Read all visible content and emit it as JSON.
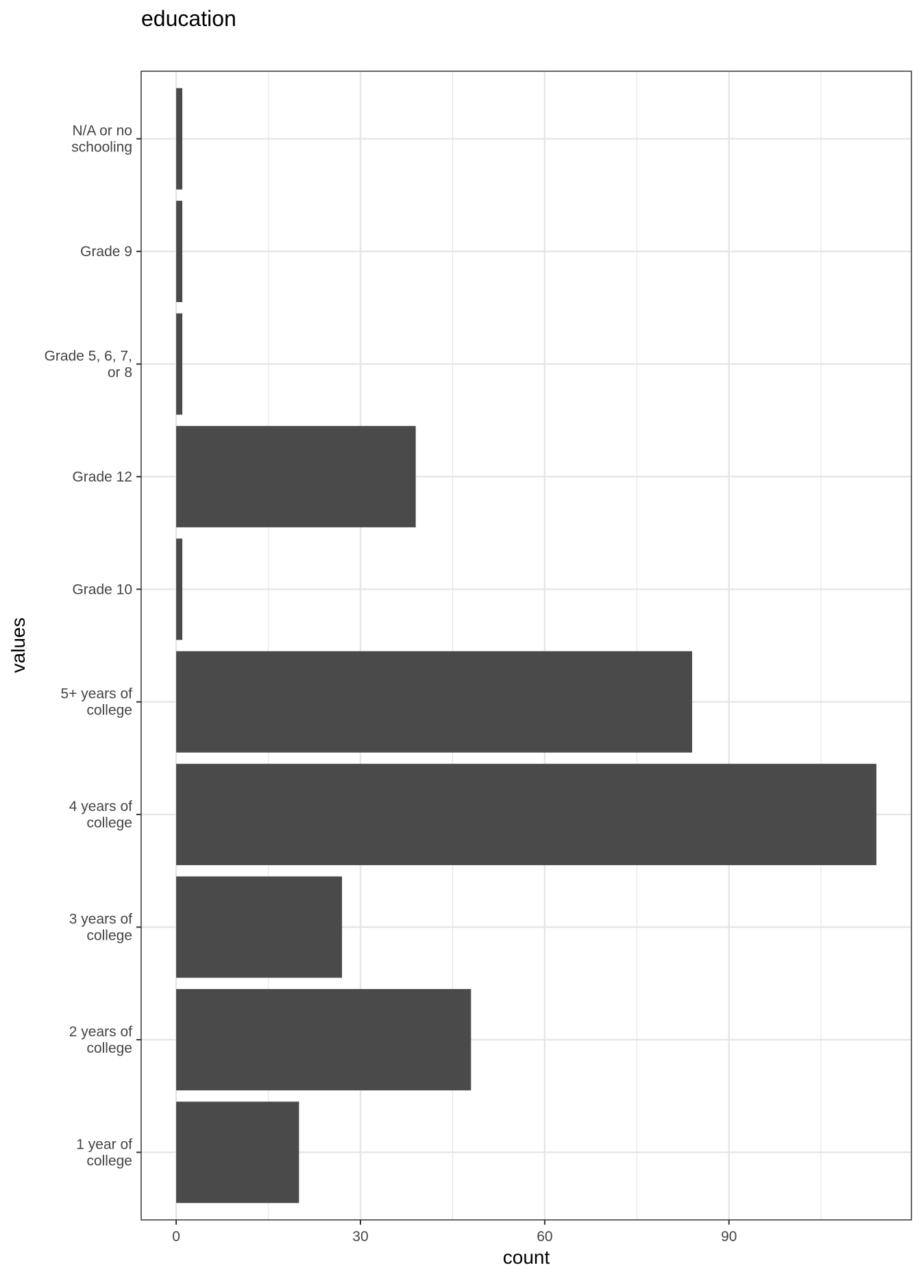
{
  "chart_data": {
    "type": "bar",
    "orientation": "horizontal",
    "title": "education",
    "xlabel": "count",
    "ylabel": "values",
    "categories": [
      "1 year of college",
      "2 years of college",
      "3 years of college",
      "4 years of college",
      "5+ years of college",
      "Grade 10",
      "Grade 12",
      "Grade 5, 6, 7, or 8",
      "Grade 9",
      "N/A or no schooling"
    ],
    "category_label_lines": [
      [
        "1 year of",
        "college"
      ],
      [
        "2 years of",
        "college"
      ],
      [
        "3 years of",
        "college"
      ],
      [
        "4 years of",
        "college"
      ],
      [
        "5+ years of",
        "college"
      ],
      [
        "Grade 10"
      ],
      [
        "Grade 12"
      ],
      [
        "Grade 5, 6, 7,",
        "or 8"
      ],
      [
        "Grade 9"
      ],
      [
        "N/A or no",
        "schooling"
      ]
    ],
    "values": [
      20,
      48,
      27,
      114,
      84,
      1,
      39,
      1,
      1,
      1
    ],
    "xlim": [
      -5.7,
      119.7
    ],
    "xticks": [
      0,
      30,
      60,
      90
    ],
    "xtick_labels": [
      "0",
      "30",
      "60",
      "90"
    ],
    "grid": true,
    "legend": "none",
    "colors": {
      "bar": "#4a4a4a",
      "grid": "#e6e6e6",
      "panel_border": "#333333",
      "background": "#ffffff"
    }
  }
}
